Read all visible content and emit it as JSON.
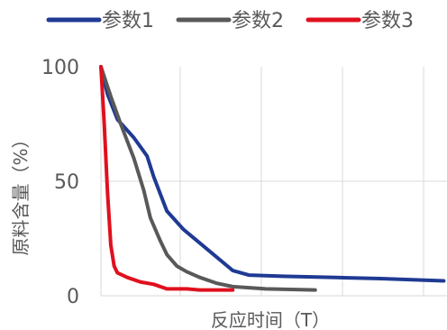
{
  "chart_data": {
    "type": "line",
    "xlabel": "反应时间（T）",
    "ylabel": "原料含量（%）",
    "xlim": [
      0,
      10.5
    ],
    "ylim": [
      0,
      100
    ],
    "yticks": [
      0,
      50,
      100
    ],
    "grid": true,
    "legend_position": "top",
    "series": [
      {
        "name": "参数1",
        "color": "#1f3a93",
        "x": [
          0,
          0.2,
          0.5,
          1.0,
          1.4,
          1.6,
          2.0,
          2.5,
          3.0,
          3.5,
          4.0,
          4.5,
          5.5,
          7.0,
          8.5,
          10.4
        ],
        "y": [
          100,
          88,
          77,
          69,
          61,
          52,
          37,
          29,
          23,
          17,
          11,
          9,
          8.5,
          8,
          7.5,
          6.5
        ]
      },
      {
        "name": "参数2",
        "color": "#595959",
        "x": [
          0,
          0.3,
          0.6,
          1.0,
          1.3,
          1.5,
          1.8,
          2.0,
          2.3,
          2.6,
          3.0,
          3.5,
          4.0,
          5.0,
          6.5
        ],
        "y": [
          100,
          87,
          75,
          60,
          46,
          34,
          24,
          18,
          13,
          10.5,
          8,
          5.5,
          4,
          3,
          2.5
        ]
      },
      {
        "name": "参数3",
        "color": "#e0101e",
        "x": [
          0,
          0.1,
          0.2,
          0.3,
          0.4,
          0.5,
          0.8,
          1.2,
          1.6,
          2.0,
          2.6,
          3.0,
          4.0
        ],
        "y": [
          100,
          75,
          45,
          22,
          13,
          10,
          8,
          6,
          5,
          3,
          3,
          2.5,
          2.5
        ]
      }
    ]
  }
}
